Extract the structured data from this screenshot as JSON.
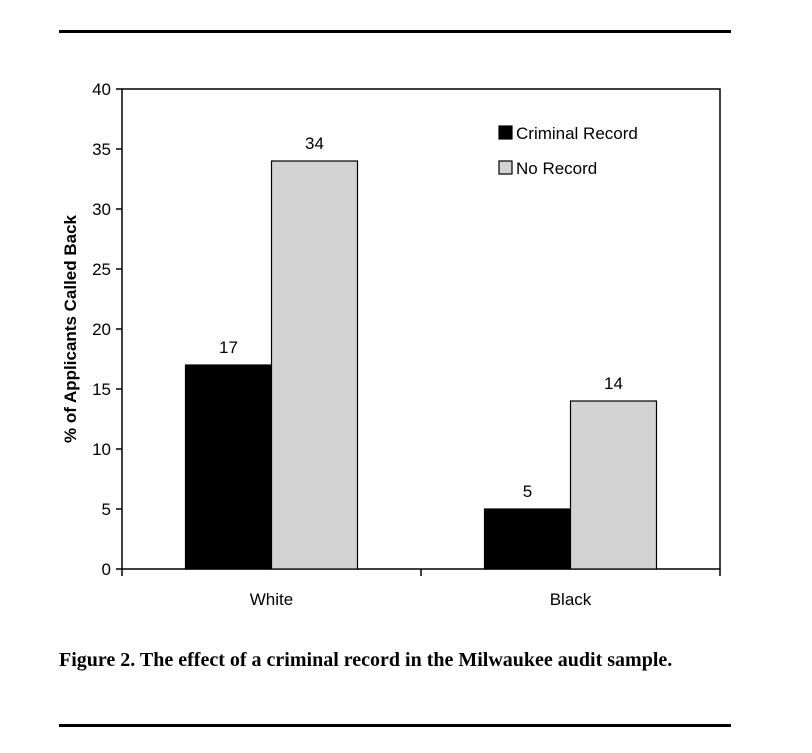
{
  "caption": "Figure 2. The effect of a criminal record in the Milwaukee audit sample.",
  "chart_data": {
    "type": "bar",
    "title": "",
    "xlabel": "",
    "ylabel": "% of Applicants Called Back",
    "ylim": [
      0,
      40
    ],
    "yticks": [
      0,
      5,
      10,
      15,
      20,
      25,
      30,
      35,
      40
    ],
    "categories": [
      "White",
      "Black"
    ],
    "series": [
      {
        "name": "Criminal Record",
        "values": [
          17,
          5
        ],
        "color": "#000000"
      },
      {
        "name": "No Record",
        "values": [
          34,
          14
        ],
        "color": "#d3d3d3"
      }
    ],
    "grid": false,
    "legend": "top-right"
  }
}
